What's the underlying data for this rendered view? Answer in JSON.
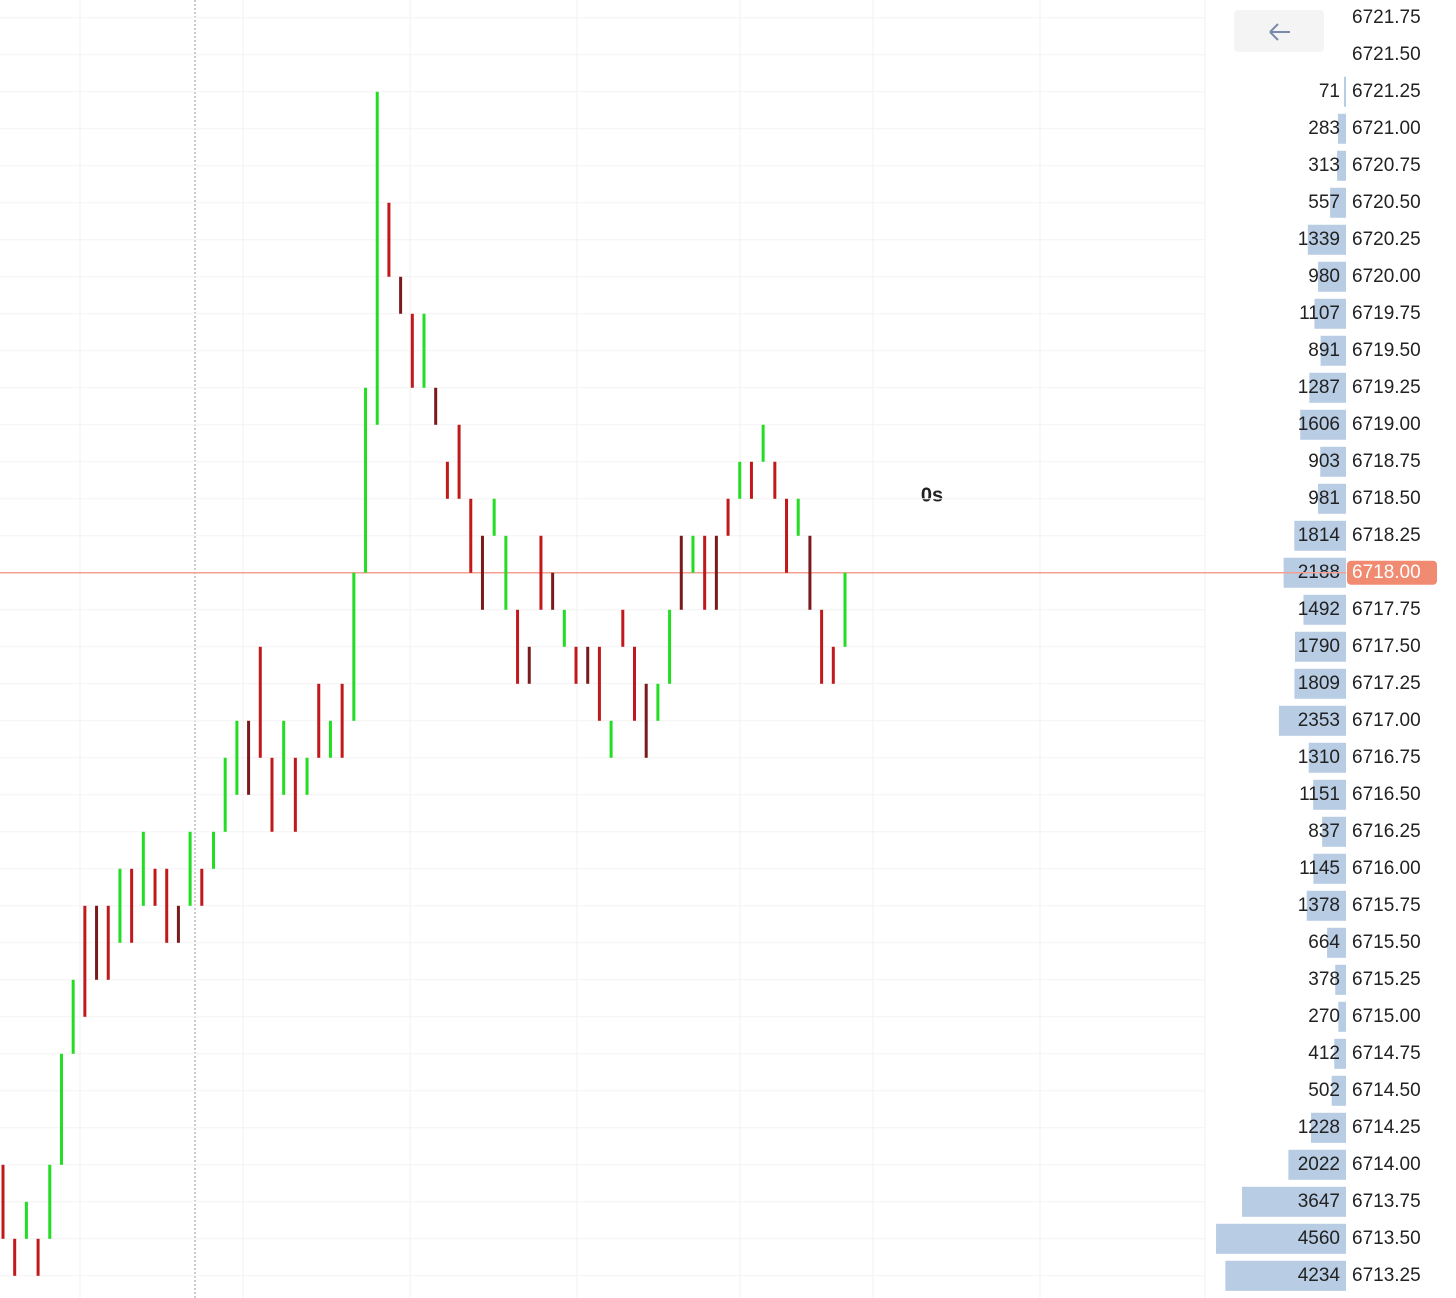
{
  "chart_data": {
    "type": "tickbars",
    "ylim": [
      6713.1,
      6721.87
    ],
    "yticks": [
      {
        "value": 6721.75,
        "label": "6721.75"
      },
      {
        "value": 6721.5,
        "label": "6721.50"
      },
      {
        "value": 6721.25,
        "label": "6721.25"
      },
      {
        "value": 6721,
        "label": "6721.00"
      },
      {
        "value": 6720.75,
        "label": "6720.75"
      },
      {
        "value": 6720.5,
        "label": "6720.50"
      },
      {
        "value": 6720.25,
        "label": "6720.25"
      },
      {
        "value": 6720,
        "label": "6720.00"
      },
      {
        "value": 6719.75,
        "label": "6719.75"
      },
      {
        "value": 6719.5,
        "label": "6719.50"
      },
      {
        "value": 6719.25,
        "label": "6719.25"
      },
      {
        "value": 6719,
        "label": "6719.00"
      },
      {
        "value": 6718.75,
        "label": "6718.75"
      },
      {
        "value": 6718.5,
        "label": "6718.50"
      },
      {
        "value": 6718.25,
        "label": "6718.25"
      },
      {
        "value": 6718,
        "label": "6718.00"
      },
      {
        "value": 6717.75,
        "label": "6717.75"
      },
      {
        "value": 6717.5,
        "label": "6717.50"
      },
      {
        "value": 6717.25,
        "label": "6717.25"
      },
      {
        "value": 6717,
        "label": "6717.00"
      },
      {
        "value": 6716.75,
        "label": "6716.75"
      },
      {
        "value": 6716.5,
        "label": "6716.50"
      },
      {
        "value": 6716.25,
        "label": "6716.25"
      },
      {
        "value": 6716,
        "label": "6716.00"
      },
      {
        "value": 6715.75,
        "label": "6715.75"
      },
      {
        "value": 6715.5,
        "label": "6715.50"
      },
      {
        "value": 6715.25,
        "label": "6715.25"
      },
      {
        "value": 6715,
        "label": "6715.00"
      },
      {
        "value": 6714.75,
        "label": "6714.75"
      },
      {
        "value": 6714.5,
        "label": "6714.50"
      },
      {
        "value": 6714.25,
        "label": "6714.25"
      },
      {
        "value": 6714,
        "label": "6714.00"
      },
      {
        "value": 6713.75,
        "label": "6713.75"
      },
      {
        "value": 6713.5,
        "label": "6713.50"
      },
      {
        "value": 6713.25,
        "label": "6713.25"
      }
    ],
    "grid": true,
    "current_price": {
      "value": 6718,
      "label": "6718.00"
    },
    "current_price_color": "#f08a70",
    "timer": "0s",
    "timer_color": "#e0561e",
    "bars": {
      "low": [
        6713.5,
        6713.25,
        6713.5,
        6713.25,
        6713.5,
        6714,
        6714.75,
        6715,
        6715.25,
        6715.25,
        6715.5,
        6715.5,
        6715.75,
        6715.75,
        6715.5,
        6715.5,
        6715.75,
        6715.75,
        6716,
        6716.25,
        6716.5,
        6716.5,
        6716.75,
        6716.25,
        6716.5,
        6716.25,
        6716.5,
        6716.75,
        6716.75,
        6716.75,
        6717,
        6718,
        6719,
        6720,
        6719.75,
        6719.25,
        6719.25,
        6719,
        6718.5,
        6718.5,
        6718,
        6717.75,
        6718.25,
        6717.75,
        6717.25,
        6717.25,
        6717.75,
        6717.75,
        6717.5,
        6717.25,
        6717.25,
        6717,
        6716.75,
        6717.5,
        6717,
        6716.75,
        6717,
        6717.25,
        6717.75,
        6718,
        6717.75,
        6717.75,
        6718.25,
        6718.5,
        6718.5,
        6718.75,
        6718.5,
        6718,
        6718.25,
        6717.75,
        6717.25,
        6717.25,
        6717.5
      ],
      "high": [
        6714,
        6713.5,
        6713.75,
        6713.5,
        6714,
        6714.75,
        6715.25,
        6715.75,
        6715.75,
        6715.75,
        6716,
        6716,
        6716.25,
        6716,
        6716,
        6715.75,
        6716.25,
        6716,
        6716.25,
        6716.75,
        6717,
        6717,
        6717.5,
        6716.75,
        6717,
        6716.75,
        6716.75,
        6717.25,
        6717,
        6717.25,
        6718,
        6719.25,
        6721.25,
        6720.5,
        6720,
        6719.75,
        6719.75,
        6719.25,
        6718.75,
        6719,
        6718.5,
        6718.25,
        6718.5,
        6718.25,
        6717.75,
        6717.5,
        6718.25,
        6718,
        6717.75,
        6717.5,
        6717.5,
        6717.5,
        6717,
        6717.75,
        6717.5,
        6717.25,
        6717.25,
        6717.75,
        6718.25,
        6718.25,
        6718.25,
        6718.25,
        6718.5,
        6718.75,
        6718.75,
        6719,
        6718.75,
        6718.5,
        6718.5,
        6718.25,
        6717.75,
        6717.5,
        6718
      ],
      "colors": [
        "#c0181b",
        "#c0181b",
        "#22dd22",
        "#c0181b",
        "#22dd22",
        "#22dd22",
        "#22dd22",
        "#c0181b",
        "#7a1a1a",
        "#c0181b",
        "#22dd22",
        "#c0181b",
        "#22dd22",
        "#c0181b",
        "#c0181b",
        "#7a1a1a",
        "#22dd22",
        "#c0181b",
        "#22dd22",
        "#22dd22",
        "#22dd22",
        "#7a1a1a",
        "#c0181b",
        "#c0181b",
        "#22dd22",
        "#c0181b",
        "#22dd22",
        "#c0181b",
        "#22dd22",
        "#c0181b",
        "#22dd22",
        "#22dd22",
        "#22dd22",
        "#c0181b",
        "#7a1a1a",
        "#c0181b",
        "#22dd22",
        "#7a1a1a",
        "#c0181b",
        "#c0181b",
        "#c0181b",
        "#7a1a1a",
        "#22dd22",
        "#22dd22",
        "#c0181b",
        "#7a1a1a",
        "#c0181b",
        "#7a1a1a",
        "#22dd22",
        "#c0181b",
        "#7a1a1a",
        "#c0181b",
        "#22dd22",
        "#c0181b",
        "#c0181b",
        "#7a1a1a",
        "#22dd22",
        "#22dd22",
        "#7a1a1a",
        "#22dd22",
        "#c0181b",
        "#7a1a1a",
        "#c0181b",
        "#22dd22",
        "#c0181b",
        "#22dd22",
        "#c0181b",
        "#c0181b",
        "#22dd22",
        "#7a1a1a",
        "#c0181b",
        "#c0181b",
        "#22dd22"
      ]
    },
    "volume_profile": {
      "color": "#b8cce4",
      "xlim": [
        0,
        5000
      ],
      "levels": [
        6721.25,
        6721,
        6720.75,
        6720.5,
        6720.25,
        6720,
        6719.75,
        6719.5,
        6719.25,
        6719,
        6718.75,
        6718.5,
        6718.25,
        6718,
        6717.75,
        6717.5,
        6717.25,
        6717,
        6716.75,
        6716.5,
        6716.25,
        6716,
        6715.75,
        6715.5,
        6715.25,
        6715,
        6714.75,
        6714.5,
        6714.25,
        6714,
        6713.75,
        6713.5,
        6713.25
      ],
      "values": [
        71,
        283,
        313,
        557,
        1339,
        980,
        1107,
        891,
        1287,
        1606,
        903,
        981,
        1814,
        2188,
        1492,
        1790,
        1809,
        2353,
        1310,
        1151,
        837,
        1145,
        1378,
        664,
        378,
        270,
        412,
        502,
        1228,
        2022,
        3647,
        4560,
        4234
      ]
    }
  }
}
